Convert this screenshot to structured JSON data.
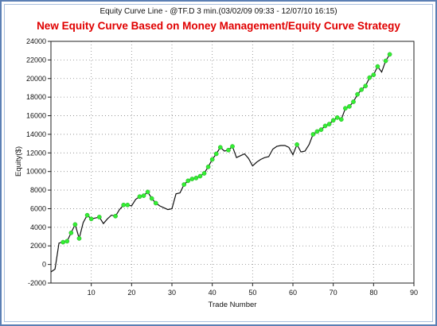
{
  "title": "Equity Curve Line - @TF.D 3 min.(03/02/09 09:33 - 12/07/10 16:15)",
  "subtitle": "New Equity Curve Based on Money Management/Equity Curve Strategy",
  "colors": {
    "subtitle": "#e00000",
    "line": "#111111",
    "marker": "#33ee33",
    "grid": "#888888",
    "frame": "#5b7fb4"
  },
  "chart_data": {
    "type": "line",
    "title": "Equity Curve Line - @TF.D 3 min.(03/02/09 09:33 - 12/07/10 16:15)",
    "subtitle": "New Equity Curve Based on Money Management/Equity Curve Strategy",
    "xlabel": "Trade Number",
    "ylabel": "Equity($)",
    "xlim": [
      0,
      90
    ],
    "ylim": [
      -2000,
      24000
    ],
    "x_ticks": [
      10,
      20,
      30,
      40,
      50,
      60,
      70,
      80,
      90
    ],
    "y_ticks": [
      -2000,
      0,
      2000,
      4000,
      6000,
      8000,
      10000,
      12000,
      14000,
      16000,
      18000,
      20000,
      22000,
      24000
    ],
    "grid": true,
    "legend": "none",
    "x": [
      0,
      1,
      2,
      3,
      4,
      5,
      6,
      7,
      8,
      9,
      10,
      11,
      12,
      13,
      14,
      15,
      16,
      17,
      18,
      19,
      20,
      21,
      22,
      23,
      24,
      25,
      26,
      27,
      28,
      29,
      30,
      31,
      32,
      33,
      34,
      35,
      36,
      37,
      38,
      39,
      40,
      41,
      42,
      43,
      44,
      45,
      46,
      47,
      48,
      49,
      50,
      51,
      52,
      53,
      54,
      55,
      56,
      57,
      58,
      59,
      60,
      61,
      62,
      63,
      64,
      65,
      66,
      67,
      68,
      69,
      70,
      71,
      72,
      73,
      74,
      75,
      76,
      77,
      78,
      79,
      80,
      81,
      82,
      83,
      84
    ],
    "y": [
      -800,
      -500,
      2300,
      2400,
      2500,
      3400,
      4300,
      2800,
      4500,
      5300,
      4900,
      5000,
      5100,
      4400,
      4900,
      5300,
      5200,
      5900,
      6400,
      6400,
      6300,
      7000,
      7300,
      7400,
      7800,
      7100,
      6600,
      6300,
      6100,
      5900,
      6000,
      7600,
      7700,
      8600,
      9000,
      9200,
      9300,
      9500,
      9800,
      10500,
      11300,
      11900,
      12600,
      12200,
      12300,
      12700,
      11500,
      11700,
      11900,
      11400,
      10600,
      11000,
      11300,
      11500,
      11600,
      12400,
      12700,
      12800,
      12800,
      12600,
      11800,
      12900,
      12100,
      12200,
      12900,
      14000,
      14300,
      14500,
      14900,
      15100,
      15500,
      15800,
      15600,
      16800,
      17000,
      17500,
      18300,
      18800,
      19200,
      20100,
      20400,
      21300,
      20700,
      21900,
      22600
    ],
    "markers": [
      3,
      4,
      5,
      6,
      7,
      9,
      10,
      12,
      16,
      18,
      19,
      22,
      23,
      24,
      25,
      26,
      33,
      34,
      35,
      36,
      37,
      38,
      39,
      40,
      41,
      42,
      44,
      45,
      61,
      65,
      66,
      67,
      68,
      69,
      70,
      71,
      72,
      73,
      74,
      75,
      76,
      77,
      78,
      79,
      80,
      81,
      83,
      84
    ]
  }
}
